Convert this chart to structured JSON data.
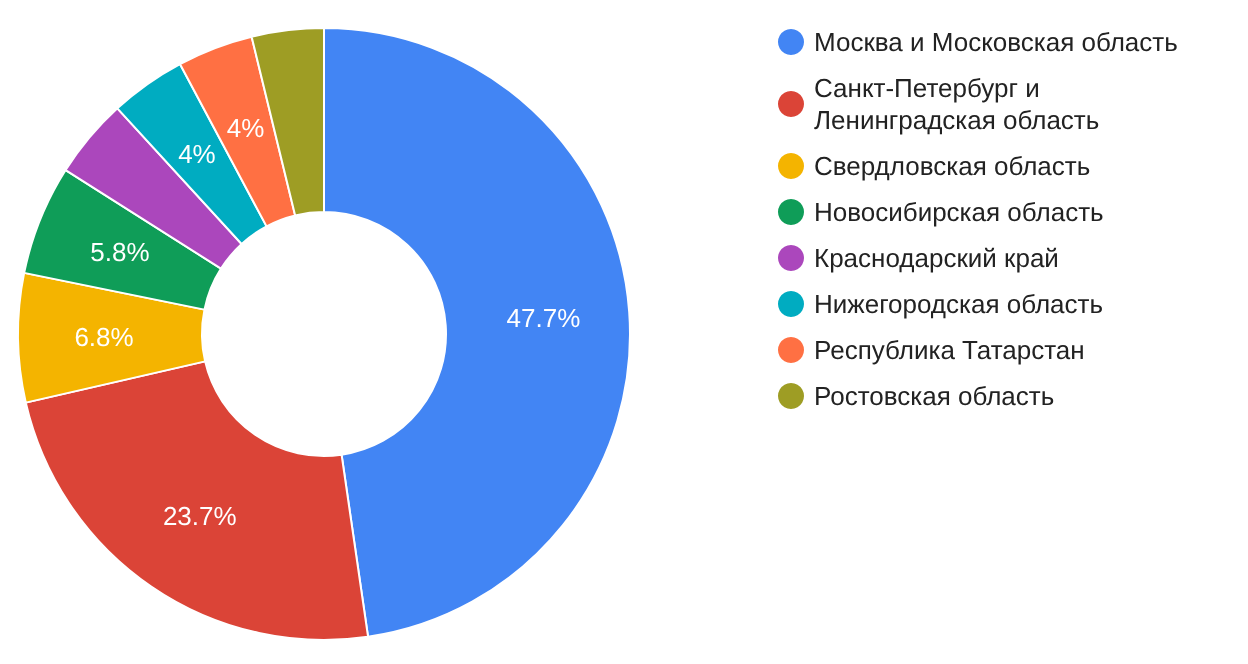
{
  "chart_data": {
    "type": "donut",
    "categories": [
      "Москва и Московская область",
      "Санкт-Петербург и Ленинградская область",
      "Свердловская область",
      "Новосибирская область",
      "Краснодарский край",
      "Нижегородская область",
      "Республика Татарстан",
      "Ростовская область"
    ],
    "values": [
      47.7,
      23.7,
      6.8,
      5.8,
      4.2,
      4,
      4,
      3.8
    ],
    "colors": [
      "#4285f4",
      "#db4437",
      "#f4b400",
      "#0f9d58",
      "#ab47bc",
      "#00acc1",
      "#ff7043",
      "#9e9d24"
    ],
    "value_labels": [
      "47.7%",
      "23.7%",
      "6.8%",
      "5.8%",
      null,
      "4%",
      "4%",
      null
    ],
    "legend": "right"
  }
}
